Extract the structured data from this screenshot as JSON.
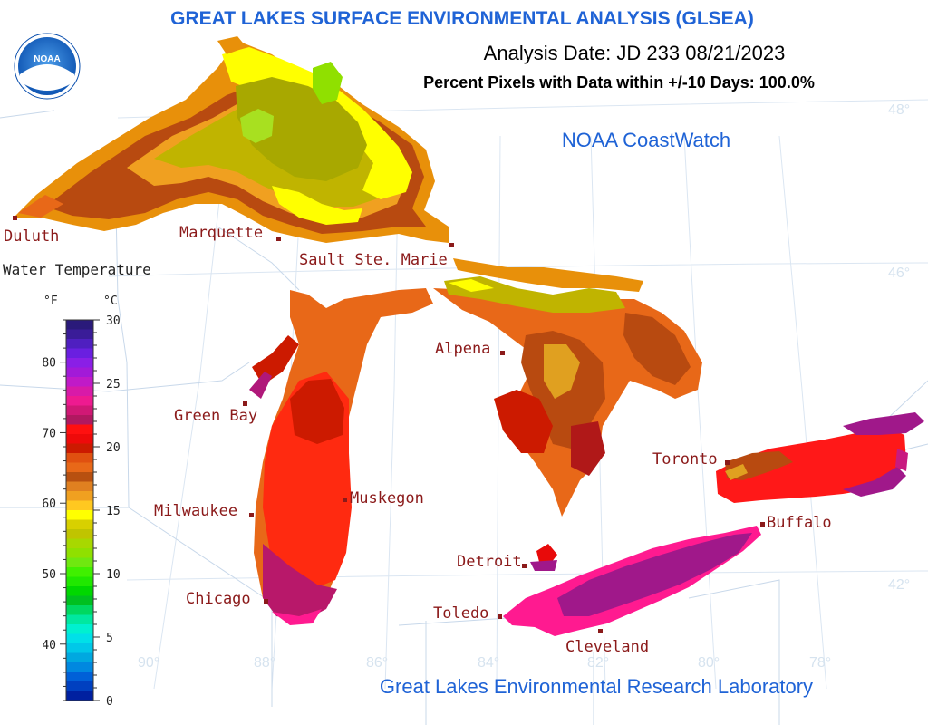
{
  "header": {
    "title": "GREAT LAKES SURFACE ENVIRONMENTAL ANALYSIS (GLSEA)",
    "analysis_date": "Analysis Date:  JD 233 08/21/2023",
    "percent_pixels": "Percent Pixels with Data within +/-10 Days: 100.0%",
    "coastwatch": "NOAA CoastWatch",
    "footer": "Great Lakes Environmental Research Laboratory",
    "logo_text": "NOAA"
  },
  "colors": {
    "title": "#1f63d6",
    "city_label": "#8b1a1a",
    "city_marker": "#8b1a1a",
    "gridline": "#dbe6f2",
    "border": "#c8d8ea"
  },
  "legend": {
    "title": "Water Temperature",
    "unit_f": "°F",
    "unit_c": "°C",
    "f_ticks": [
      "80",
      "70",
      "60",
      "50",
      "40"
    ],
    "c_ticks": [
      "30",
      "25",
      "20",
      "15",
      "10",
      "5",
      "0"
    ],
    "colors": [
      "#2a1a7a",
      "#3a1c98",
      "#4f1fc0",
      "#6a1fe0",
      "#8a1fe6",
      "#a21ad8",
      "#c01ac8",
      "#d81aa8",
      "#ee1a90",
      "#d01875",
      "#b01860",
      "#ff1010",
      "#ee0a0a",
      "#cc1a00",
      "#e05010",
      "#e86818",
      "#b85010",
      "#e08020",
      "#f0a020",
      "#ffc820",
      "#ffff00",
      "#d8d000",
      "#c0c400",
      "#a8d800",
      "#90e000",
      "#70e810",
      "#40f000",
      "#20e800",
      "#00d800",
      "#00c020",
      "#00d860",
      "#00e8a0",
      "#00f0d0",
      "#00e0e8",
      "#00c8e8",
      "#00a8e0",
      "#0088e0",
      "#0060d8",
      "#0040c0",
      "#0020a0"
    ]
  },
  "cities": [
    {
      "name": "Duluth"
    },
    {
      "name": "Marquette"
    },
    {
      "name": "Sault Ste. Marie"
    },
    {
      "name": "Alpena"
    },
    {
      "name": "Green Bay"
    },
    {
      "name": "Milwaukee"
    },
    {
      "name": "Muskegon"
    },
    {
      "name": "Detroit"
    },
    {
      "name": "Toronto"
    },
    {
      "name": "Buffalo"
    },
    {
      "name": "Chicago"
    },
    {
      "name": "Toledo"
    },
    {
      "name": "Cleveland"
    }
  ],
  "latitudes": [
    "48°",
    "46°",
    "42°"
  ],
  "longitudes": [
    "90°",
    "88°",
    "86°",
    "84°",
    "82°",
    "80°",
    "78°"
  ]
}
